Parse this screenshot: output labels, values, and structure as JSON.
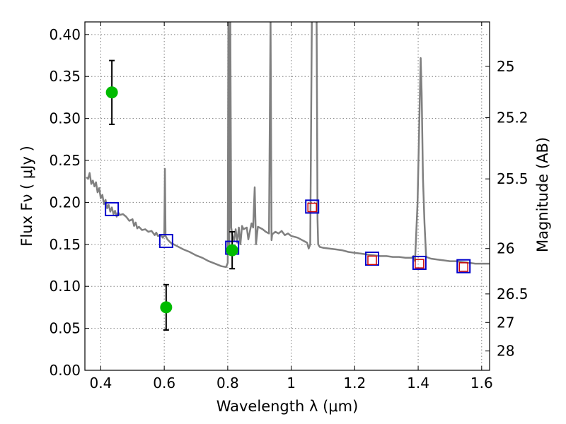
{
  "chart_data": {
    "type": "scatter",
    "xlabel": "Wavelength  λ (μm)",
    "ylabel": "Flux  Fν  ( μJy )",
    "ylabel_right": "Magnitude (AB)",
    "xlim": [
      0.35,
      1.625
    ],
    "ylim": [
      0.0,
      0.415
    ],
    "x_ticks": [
      0.4,
      0.6,
      0.8,
      1.0,
      1.2,
      1.4,
      1.6
    ],
    "x_tick_labels": [
      "0.4",
      "0.6",
      "0.8",
      "1",
      "1.2",
      "1.4",
      "1.6"
    ],
    "y_ticks": [
      0.0,
      0.05,
      0.1,
      0.15,
      0.2,
      0.25,
      0.3,
      0.35,
      0.4
    ],
    "y_tick_labels": [
      "0.00",
      "0.05",
      "0.10",
      "0.15",
      "0.20",
      "0.25",
      "0.30",
      "0.35",
      "0.40"
    ],
    "right_ticks": [
      {
        "label": "25",
        "flux": 0.362
      },
      {
        "label": "25.2",
        "flux": 0.301
      },
      {
        "label": "25.5",
        "flux": 0.228
      },
      {
        "label": "26",
        "flux": 0.145
      },
      {
        "label": "26.5",
        "flux": 0.091
      },
      {
        "label": "27",
        "flux": 0.057
      },
      {
        "label": "28",
        "flux": 0.023
      }
    ],
    "grid": true,
    "series": [
      {
        "kind": "sed_model",
        "color": "#808080",
        "points": [
          [
            0.355,
            0.23
          ],
          [
            0.36,
            0.228
          ],
          [
            0.365,
            0.235
          ],
          [
            0.37,
            0.222
          ],
          [
            0.375,
            0.226
          ],
          [
            0.38,
            0.219
          ],
          [
            0.385,
            0.224
          ],
          [
            0.39,
            0.212
          ],
          [
            0.395,
            0.217
          ],
          [
            0.4,
            0.205
          ],
          [
            0.405,
            0.209
          ],
          [
            0.41,
            0.198
          ],
          [
            0.415,
            0.203
          ],
          [
            0.42,
            0.193
          ],
          [
            0.425,
            0.197
          ],
          [
            0.43,
            0.189
          ],
          [
            0.435,
            0.194
          ],
          [
            0.44,
            0.186
          ],
          [
            0.445,
            0.19
          ],
          [
            0.45,
            0.183
          ],
          [
            0.455,
            0.188
          ],
          [
            0.46,
            0.185
          ],
          [
            0.47,
            0.186
          ],
          [
            0.48,
            0.183
          ],
          [
            0.49,
            0.178
          ],
          [
            0.5,
            0.18
          ],
          [
            0.505,
            0.172
          ],
          [
            0.51,
            0.176
          ],
          [
            0.515,
            0.169
          ],
          [
            0.52,
            0.171
          ],
          [
            0.53,
            0.167
          ],
          [
            0.54,
            0.168
          ],
          [
            0.55,
            0.165
          ],
          [
            0.56,
            0.166
          ],
          [
            0.57,
            0.161
          ],
          [
            0.575,
            0.164
          ],
          [
            0.58,
            0.16
          ],
          [
            0.59,
            0.161
          ],
          [
            0.595,
            0.158
          ],
          [
            0.6,
            0.16
          ],
          [
            0.602,
            0.24
          ],
          [
            0.604,
            0.16
          ],
          [
            0.61,
            0.156
          ],
          [
            0.62,
            0.152
          ],
          [
            0.64,
            0.148
          ],
          [
            0.66,
            0.144
          ],
          [
            0.68,
            0.141
          ],
          [
            0.7,
            0.137
          ],
          [
            0.72,
            0.134
          ],
          [
            0.74,
            0.13
          ],
          [
            0.76,
            0.127
          ],
          [
            0.78,
            0.124
          ],
          [
            0.795,
            0.123
          ],
          [
            0.8,
            0.128
          ],
          [
            0.802,
            0.42
          ],
          [
            0.805,
            0.15
          ],
          [
            0.808,
            0.42
          ],
          [
            0.811,
            0.17
          ],
          [
            0.815,
            0.16
          ],
          [
            0.82,
            0.155
          ],
          [
            0.825,
            0.168
          ],
          [
            0.83,
            0.152
          ],
          [
            0.835,
            0.17
          ],
          [
            0.84,
            0.15
          ],
          [
            0.845,
            0.172
          ],
          [
            0.85,
            0.168
          ],
          [
            0.86,
            0.17
          ],
          [
            0.865,
            0.156
          ],
          [
            0.87,
            0.166
          ],
          [
            0.875,
            0.175
          ],
          [
            0.88,
            0.17
          ],
          [
            0.885,
            0.218
          ],
          [
            0.889,
            0.15
          ],
          [
            0.895,
            0.171
          ],
          [
            0.9,
            0.17
          ],
          [
            0.91,
            0.168
          ],
          [
            0.92,
            0.165
          ],
          [
            0.93,
            0.163
          ],
          [
            0.935,
            0.42
          ],
          [
            0.938,
            0.155
          ],
          [
            0.94,
            0.162
          ],
          [
            0.95,
            0.165
          ],
          [
            0.96,
            0.163
          ],
          [
            0.97,
            0.166
          ],
          [
            0.98,
            0.161
          ],
          [
            0.99,
            0.163
          ],
          [
            1.0,
            0.16
          ],
          [
            1.01,
            0.159
          ],
          [
            1.02,
            0.158
          ],
          [
            1.03,
            0.156
          ],
          [
            1.04,
            0.154
          ],
          [
            1.05,
            0.152
          ],
          [
            1.055,
            0.145
          ],
          [
            1.06,
            0.15
          ],
          [
            1.065,
            0.42
          ],
          [
            1.075,
            0.42
          ],
          [
            1.08,
            0.42
          ],
          [
            1.083,
            0.18
          ],
          [
            1.085,
            0.15
          ],
          [
            1.09,
            0.147
          ],
          [
            1.1,
            0.146
          ],
          [
            1.12,
            0.145
          ],
          [
            1.14,
            0.144
          ],
          [
            1.16,
            0.143
          ],
          [
            1.18,
            0.141
          ],
          [
            1.2,
            0.14
          ],
          [
            1.22,
            0.139
          ],
          [
            1.24,
            0.138
          ],
          [
            1.26,
            0.137
          ],
          [
            1.28,
            0.136
          ],
          [
            1.3,
            0.136
          ],
          [
            1.32,
            0.135
          ],
          [
            1.34,
            0.135
          ],
          [
            1.36,
            0.134
          ],
          [
            1.38,
            0.134
          ],
          [
            1.385,
            0.136
          ],
          [
            1.39,
            0.13
          ],
          [
            1.398,
            0.2
          ],
          [
            1.405,
            0.32
          ],
          [
            1.408,
            0.372
          ],
          [
            1.411,
            0.33
          ],
          [
            1.415,
            0.23
          ],
          [
            1.42,
            0.175
          ],
          [
            1.425,
            0.135
          ],
          [
            1.44,
            0.133
          ],
          [
            1.46,
            0.132
          ],
          [
            1.48,
            0.131
          ],
          [
            1.5,
            0.13
          ],
          [
            1.52,
            0.13
          ],
          [
            1.54,
            0.129
          ],
          [
            1.56,
            0.128
          ],
          [
            1.58,
            0.127
          ],
          [
            1.6,
            0.127
          ],
          [
            1.625,
            0.127
          ]
        ]
      },
      {
        "kind": "observed_flux",
        "color": "#00bb00",
        "points": [
          {
            "x": 0.435,
            "y": 0.331,
            "err": 0.038
          },
          {
            "x": 0.606,
            "y": 0.075,
            "err": 0.027
          },
          {
            "x": 0.814,
            "y": 0.143,
            "err": 0.022
          }
        ]
      },
      {
        "kind": "model_bandflux_blue",
        "color": "#0000cc",
        "points": [
          {
            "x": 0.435,
            "y": 0.192
          },
          {
            "x": 0.606,
            "y": 0.154
          },
          {
            "x": 0.814,
            "y": 0.146
          },
          {
            "x": 1.066,
            "y": 0.195
          },
          {
            "x": 1.255,
            "y": 0.133
          },
          {
            "x": 1.404,
            "y": 0.128
          },
          {
            "x": 1.543,
            "y": 0.124
          }
        ]
      },
      {
        "kind": "model_bandflux_red",
        "color": "#cc0000",
        "points": [
          {
            "x": 1.066,
            "y": 0.194
          },
          {
            "x": 1.255,
            "y": 0.131
          },
          {
            "x": 1.404,
            "y": 0.127
          },
          {
            "x": 1.543,
            "y": 0.123
          }
        ]
      }
    ]
  }
}
